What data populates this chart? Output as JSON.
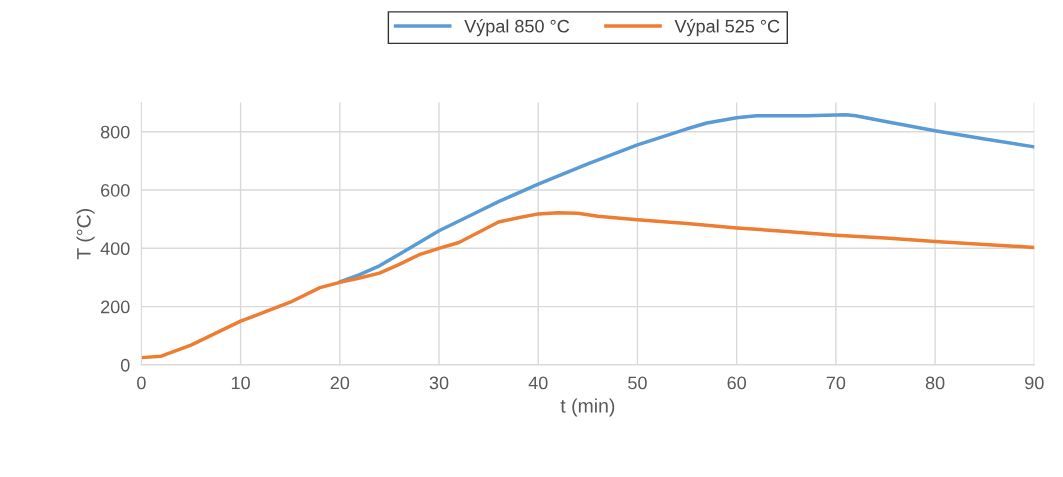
{
  "chart_data": {
    "type": "line",
    "xlabel": "t (min)",
    "ylabel": "T (°C)",
    "xlim": [
      0,
      90
    ],
    "ylim": [
      0,
      900
    ],
    "xticks": [
      0,
      10,
      20,
      30,
      40,
      50,
      60,
      70,
      80,
      90
    ],
    "yticks": [
      0,
      200,
      400,
      600,
      800
    ],
    "grid": true,
    "legend": "top",
    "marker": "none",
    "line_style": "solid",
    "series": [
      {
        "name": "Výpal 850 °C",
        "color": "#5b9bd5",
        "x": [
          20,
          22,
          24,
          26,
          28,
          30,
          33,
          36,
          40,
          45,
          50,
          55,
          57,
          60,
          62,
          67,
          71,
          72,
          75,
          80,
          85,
          90
        ],
        "values": [
          285,
          310,
          340,
          380,
          420,
          460,
          510,
          560,
          620,
          690,
          755,
          810,
          830,
          848,
          855,
          855,
          858,
          855,
          835,
          803,
          775,
          748
        ]
      },
      {
        "name": "Výpal 525 °C",
        "color": "#ed7d31",
        "x": [
          0,
          2,
          5,
          10,
          15,
          18,
          20,
          22,
          24,
          26,
          28,
          30,
          32,
          34,
          36,
          38,
          40,
          42,
          44,
          46,
          50,
          55,
          60,
          65,
          70,
          75,
          80,
          85,
          90
        ],
        "values": [
          25,
          30,
          68,
          150,
          215,
          265,
          283,
          298,
          315,
          345,
          378,
          400,
          420,
          455,
          490,
          505,
          518,
          522,
          520,
          510,
          498,
          485,
          470,
          458,
          445,
          435,
          423,
          413,
          403
        ]
      }
    ]
  }
}
